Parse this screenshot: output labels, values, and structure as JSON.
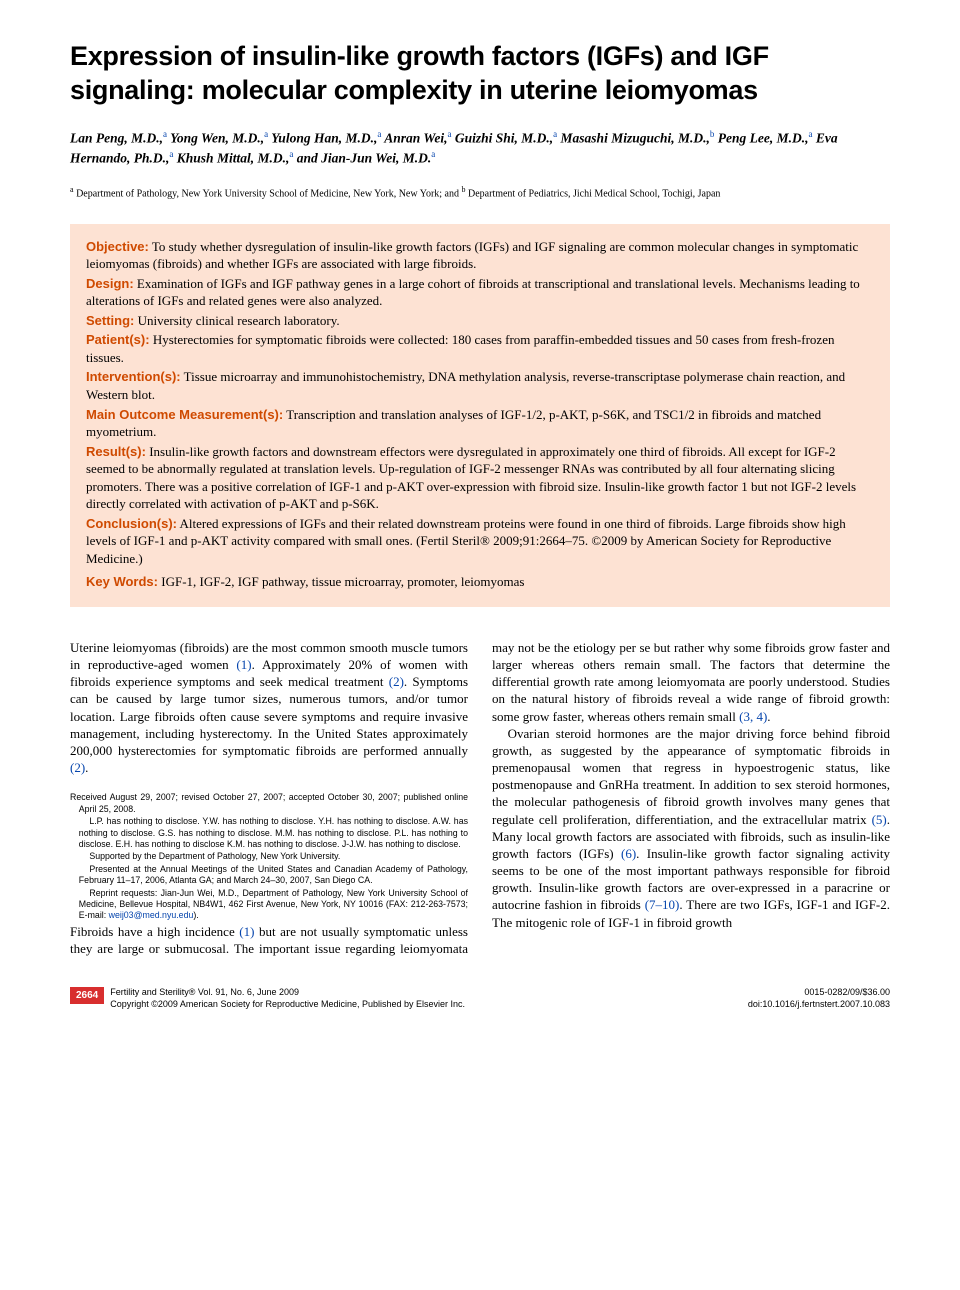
{
  "title": "Expression of insulin-like growth factors (IGFs) and IGF signaling: molecular complexity in uterine leiomyomas",
  "authors_html": "Lan Peng, M.D.,<sup>a</sup> Yong Wen, M.D.,<sup>a</sup> Yulong Han, M.D.,<sup>a</sup> Anran Wei,<sup>a</sup> Guizhi Shi, M.D.,<sup>a</sup> Masashi Mizuguchi, M.D.,<sup>b</sup> Peng Lee, M.D.,<sup>a</sup> Eva Hernando, Ph.D.,<sup>a</sup> Khush Mittal, M.D.,<sup>a</sup> and Jian-Jun Wei, M.D.<sup>a</sup>",
  "affiliations_html": "<sup>a</sup> Department of Pathology, New York University School of Medicine, New York, New York; and <sup>b</sup> Department of Pediatrics, Jichi Medical School, Tochigi, Japan",
  "abstract": {
    "objective": {
      "label": "Objective:",
      "text": "To study whether dysregulation of insulin-like growth factors (IGFs) and IGF signaling are common molecular changes in symptomatic leiomyomas (fibroids) and whether IGFs are associated with large fibroids."
    },
    "design": {
      "label": "Design:",
      "text": "Examination of IGFs and IGF pathway genes in a large cohort of fibroids at transcriptional and translational levels. Mechanisms leading to alterations of IGFs and related genes were also analyzed."
    },
    "setting": {
      "label": "Setting:",
      "text": "University clinical research laboratory."
    },
    "patients": {
      "label": "Patient(s):",
      "text": "Hysterectomies for symptomatic fibroids were collected: 180 cases from paraffin-embedded tissues and 50 cases from fresh-frozen tissues."
    },
    "interventions": {
      "label": "Intervention(s):",
      "text": "Tissue microarray and immunohistochemistry, DNA methylation analysis, reverse-transcriptase polymerase chain reaction, and Western blot."
    },
    "measurements": {
      "label": "Main Outcome Measurement(s):",
      "text": "Transcription and translation analyses of IGF-1/2, p-AKT, p-S6K, and TSC1/2 in fibroids and matched myometrium."
    },
    "results": {
      "label": "Result(s):",
      "text": "Insulin-like growth factors and downstream effectors were dysregulated in approximately one third of fibroids. All except for IGF-2 seemed to be abnormally regulated at translation levels. Up-regulation of IGF-2 messenger RNAs was contributed by all four alternating slicing promoters. There was a positive correlation of IGF-1 and p-AKT over-expression with fibroid size. Insulin-like growth factor 1 but not IGF-2 levels directly correlated with activation of p-AKT and p-S6K."
    },
    "conclusions": {
      "label": "Conclusion(s):",
      "text": "Altered expressions of IGFs and their related downstream proteins were found in one third of fibroids. Large fibroids show high levels of IGF-1 and p-AKT activity compared with small ones. (Fertil Steril® 2009;91:2664–75. ©2009 by American Society for Reproductive Medicine.)"
    },
    "keywords": {
      "label": "Key Words:",
      "text": "IGF-1, IGF-2, IGF pathway, tissue microarray, promoter, leiomyomas"
    }
  },
  "body": {
    "p1": "Uterine leiomyomas (fibroids) are the most common smooth muscle tumors in reproductive-aged women ",
    "p1_ref": "(1)",
    "p1b": ". Approximately 20% of women with fibroids experience symptoms and seek medical treatment ",
    "p1_ref2": "(2)",
    "p1c": ". Symptoms can be caused by large tumor sizes, numerous tumors, and/or tumor location. Large fibroids often cause severe symptoms and require invasive management, including hysterectomy. In the United States approximately 200,000 hysterectomies for symptomatic fibroids are performed annually ",
    "p1_ref3": "(2)",
    "p1d": ".",
    "p2a": "Fibroids have a high incidence ",
    "p2_ref": "(1)",
    "p2b": " but are not usually symptomatic unless they are large or submucosal. The important issue regarding leiomyomata may not be the etiology per se but rather why some fibroids grow faster and larger whereas others remain small. The factors that determine the differential growth rate among leiomyomata are poorly understood. Studies on the natural history of fibroids reveal a wide range of fibroid growth: some grow faster, whereas others remain small ",
    "p2_ref2": "(3, 4)",
    "p2c": ".",
    "p3a": "Ovarian steroid hormones are the major driving force behind fibroid growth, as suggested by the appearance of symptomatic fibroids in premenopausal women that regress in hypoestrogenic status, like postmenopause and GnRHa treatment. In addition to sex steroid hormones, the molecular pathogenesis of fibroid growth involves many genes that regulate cell proliferation, differentiation, and the extracellular matrix ",
    "p3_ref": "(5)",
    "p3b": ". Many local growth factors are associated with fibroids, such as insulin-like growth factors (IGFs) ",
    "p3_ref2": "(6)",
    "p3c": ". Insulin-like growth factor signaling activity seems to be one of the most important pathways responsible for fibroid growth. Insulin-like growth factors are over-expressed in a paracrine or autocrine fashion in fibroids ",
    "p3_ref3": "(7–10)",
    "p3d": ". There are two IGFs, IGF-1 and IGF-2. The mitogenic role of IGF-1 in fibroid growth"
  },
  "footnotes": {
    "f1": "Received August 29, 2007; revised October 27, 2007; accepted October 30, 2007; published online April 25, 2008.",
    "f2": "L.P. has nothing to disclose. Y.W. has nothing to disclose. Y.H. has nothing to disclose. A.W. has nothing to disclose. G.S. has nothing to disclose. M.M. has nothing to disclose. P.L. has nothing to disclose. E.H. has nothing to disclose K.M. has nothing to disclose. J-J.W. has nothing to disclose.",
    "f3": "Supported by the Department of Pathology, New York University.",
    "f4": "Presented at the Annual Meetings of the United States and Canadian Academy of Pathology, February 11–17, 2006, Atlanta GA; and March 24–30, 2007, San Diego CA.",
    "f5a": "Reprint requests: Jian-Jun Wei, M.D., Department of Pathology, New York University School of Medicine, Bellevue Hospital, NB4W1, 462 First Avenue, New York, NY 10016 (FAX: 212-263-7573; E-mail: ",
    "f5_email": "weij03@med.nyu.edu",
    "f5b": ")."
  },
  "footer": {
    "page": "2664",
    "journal": "Fertility and Sterility® Vol. 91, No. 6, June 2009",
    "copyright": "Copyright ©2009 American Society for Reproductive Medicine, Published by Elsevier Inc.",
    "issn": "0015-0282/09/$36.00",
    "doi": "doi:10.1016/j.fertnstert.2007.10.083"
  },
  "colors": {
    "abstract_bg": "#fde2d3",
    "abstract_label": "#cf4a00",
    "link": "#0645ad",
    "page_badge": "#d82e2e"
  }
}
